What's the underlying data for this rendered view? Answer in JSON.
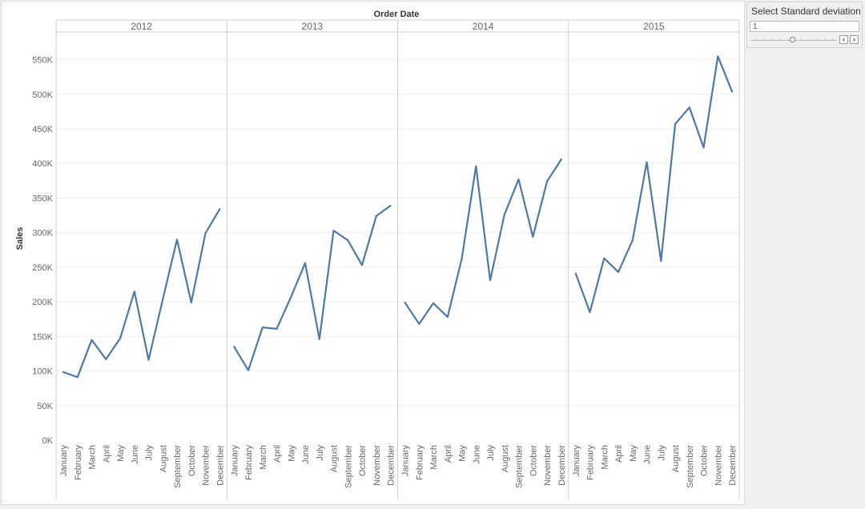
{
  "chart_data": {
    "type": "line",
    "title": "Order Date",
    "ylabel": "Sales",
    "ylim": [
      0,
      590000
    ],
    "yticks": [
      0,
      50000,
      100000,
      150000,
      200000,
      250000,
      300000,
      350000,
      400000,
      450000,
      500000,
      550000
    ],
    "ytick_labels": [
      "0K",
      "50K",
      "100K",
      "150K",
      "200K",
      "250K",
      "300K",
      "350K",
      "400K",
      "450K",
      "500K",
      "550K"
    ],
    "categories": [
      "January",
      "February",
      "March",
      "April",
      "May",
      "June",
      "July",
      "August",
      "September",
      "October",
      "November",
      "December"
    ],
    "color": "#4e79a7",
    "grid": true,
    "panels": [
      {
        "year": "2012",
        "values": [
          98500,
          91000,
          145000,
          117000,
          147000,
          215000,
          116000,
          204000,
          290000,
          199000,
          299000,
          334000
        ]
      },
      {
        "year": "2013",
        "values": [
          135000,
          101000,
          163000,
          161000,
          207000,
          256000,
          146000,
          303000,
          289000,
          253000,
          324000,
          339000
        ]
      },
      {
        "year": "2014",
        "values": [
          199000,
          168000,
          198000,
          178000,
          262000,
          396000,
          231000,
          326000,
          377000,
          294000,
          374000,
          406000
        ]
      },
      {
        "year": "2015",
        "values": [
          241000,
          185000,
          263000,
          243000,
          289000,
          402000,
          259000,
          457000,
          481000,
          423000,
          555000,
          504000
        ]
      }
    ]
  },
  "parameter": {
    "title": "Select Standard deviation",
    "value": "1",
    "prev_symbol": "‹",
    "next_symbol": "›"
  }
}
